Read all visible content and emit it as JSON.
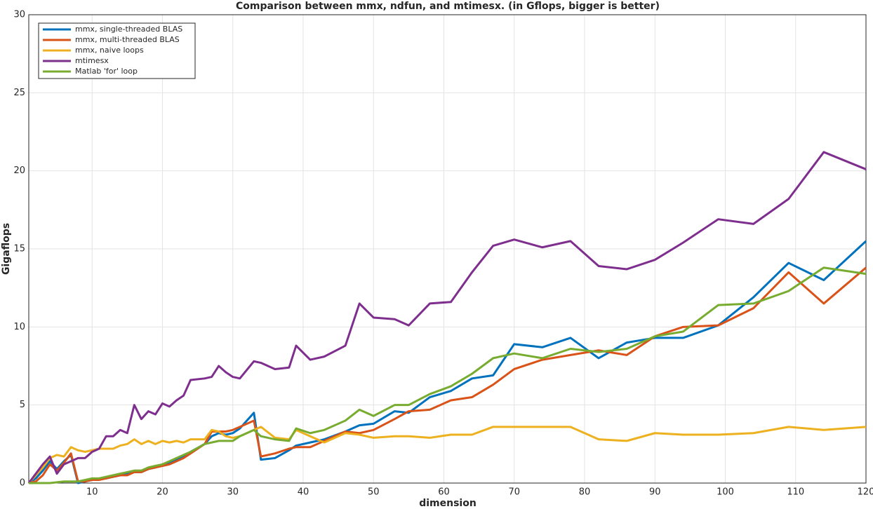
{
  "chart_data": {
    "type": "line",
    "title": "Comparison between mmx, ndfun, and mtimesx. (in Gflops, bigger is better)",
    "xlabel": "dimension",
    "ylabel": "Gigaflops",
    "x": [
      1,
      2,
      3,
      4,
      5,
      6,
      7,
      8,
      9,
      10,
      11,
      12,
      13,
      14,
      15,
      16,
      17,
      18,
      19,
      20,
      21,
      22,
      23,
      24,
      26,
      27,
      28,
      29,
      30,
      31,
      33,
      34,
      36,
      38,
      39,
      41,
      43,
      46,
      48,
      50,
      53,
      55,
      58,
      61,
      64,
      67,
      70,
      74,
      78,
      82,
      86,
      90,
      94,
      99,
      104,
      109,
      114,
      120
    ],
    "series": [
      {
        "name": "mmx, single-threaded BLAS",
        "color": "#0072bd",
        "values": [
          0,
          0.3,
          0.8,
          1.4,
          0.9,
          1.4,
          1.8,
          0,
          0.1,
          0.2,
          0.3,
          0.3,
          0.4,
          0.5,
          0.6,
          0.7,
          0.7,
          0.9,
          1.0,
          1.2,
          1.3,
          1.5,
          1.7,
          2.0,
          2.5,
          3.0,
          3.2,
          3.1,
          3.2,
          3.5,
          4.5,
          1.5,
          1.6,
          2.1,
          2.4,
          2.6,
          2.8,
          3.3,
          3.7,
          3.8,
          4.6,
          4.5,
          5.5,
          5.9,
          6.7,
          6.9,
          8.9,
          8.7,
          9.3,
          8.0,
          9.0,
          9.3,
          9.3,
          10.1,
          11.9,
          14.1,
          13.0,
          15.5
        ]
      },
      {
        "name": "mmx, multi-threaded BLAS",
        "color": "#d95319",
        "values": [
          0,
          0.1,
          0.5,
          1.2,
          0.8,
          1.3,
          1.9,
          0.1,
          0.1,
          0.2,
          0.2,
          0.3,
          0.4,
          0.5,
          0.5,
          0.7,
          0.7,
          0.9,
          1.0,
          1.1,
          1.2,
          1.4,
          1.6,
          1.9,
          2.5,
          3.3,
          3.3,
          3.3,
          3.4,
          3.6,
          4.0,
          1.7,
          1.9,
          2.2,
          2.3,
          2.3,
          2.7,
          3.3,
          3.2,
          3.4,
          4.1,
          4.6,
          4.7,
          5.3,
          5.5,
          6.3,
          7.3,
          7.9,
          8.2,
          8.5,
          8.2,
          9.4,
          10.0,
          10.1,
          11.2,
          13.5,
          11.5,
          13.8
        ]
      },
      {
        "name": "mmx, naive loops",
        "color": "#edb120",
        "values": [
          0,
          0.5,
          1.0,
          1.6,
          1.8,
          1.7,
          2.3,
          2.1,
          2.0,
          2.1,
          2.2,
          2.2,
          2.2,
          2.4,
          2.5,
          2.8,
          2.5,
          2.7,
          2.5,
          2.7,
          2.6,
          2.7,
          2.6,
          2.8,
          2.8,
          3.4,
          3.3,
          3.0,
          2.9,
          3.0,
          3.4,
          3.6,
          2.9,
          2.8,
          3.4,
          3.0,
          2.6,
          3.2,
          3.1,
          2.9,
          3.0,
          3.0,
          2.9,
          3.1,
          3.1,
          3.6,
          3.6,
          3.6,
          3.6,
          2.8,
          2.7,
          3.2,
          3.1,
          3.1,
          3.2,
          3.6,
          3.4,
          3.6
        ]
      },
      {
        "name": "mtimesx",
        "color": "#7e2f8e",
        "values": [
          0,
          0.6,
          1.2,
          1.7,
          0.6,
          1.2,
          1.4,
          1.6,
          1.6,
          2.0,
          2.2,
          3.0,
          3.0,
          3.4,
          3.2,
          5.0,
          4.1,
          4.6,
          4.4,
          5.1,
          4.9,
          5.3,
          5.6,
          6.6,
          6.7,
          6.8,
          7.5,
          7.1,
          6.8,
          6.7,
          7.8,
          7.7,
          7.3,
          7.4,
          8.8,
          7.9,
          8.1,
          8.8,
          11.5,
          10.6,
          10.5,
          10.1,
          11.5,
          11.6,
          13.5,
          15.2,
          15.6,
          15.1,
          15.5,
          13.9,
          13.7,
          14.3,
          15.4,
          16.9,
          16.6,
          18.2,
          21.2,
          20.1
        ]
      },
      {
        "name": "Matlab 'for' loop",
        "color": "#77ac30",
        "values": [
          0,
          0,
          0,
          0,
          0.05,
          0.1,
          0.1,
          0.1,
          0.2,
          0.3,
          0.3,
          0.4,
          0.5,
          0.6,
          0.7,
          0.8,
          0.8,
          1.0,
          1.1,
          1.2,
          1.4,
          1.6,
          1.8,
          2.0,
          2.5,
          2.6,
          2.7,
          2.7,
          2.7,
          3.0,
          3.4,
          3.0,
          2.8,
          2.7,
          3.5,
          3.2,
          3.4,
          4.0,
          4.7,
          4.3,
          5.0,
          5.0,
          5.7,
          6.2,
          7.0,
          8.0,
          8.3,
          8.0,
          8.6,
          8.4,
          8.6,
          9.4,
          9.7,
          11.4,
          11.5,
          12.3,
          13.8,
          13.4
        ]
      }
    ],
    "xlim": [
      1,
      120
    ],
    "xticks": [
      10,
      20,
      30,
      40,
      50,
      60,
      70,
      80,
      90,
      100,
      110,
      120
    ],
    "ylim": [
      0,
      30
    ],
    "yticks": [
      0,
      5,
      10,
      15,
      20,
      25,
      30
    ],
    "grid": true,
    "legend": "upper-left"
  }
}
